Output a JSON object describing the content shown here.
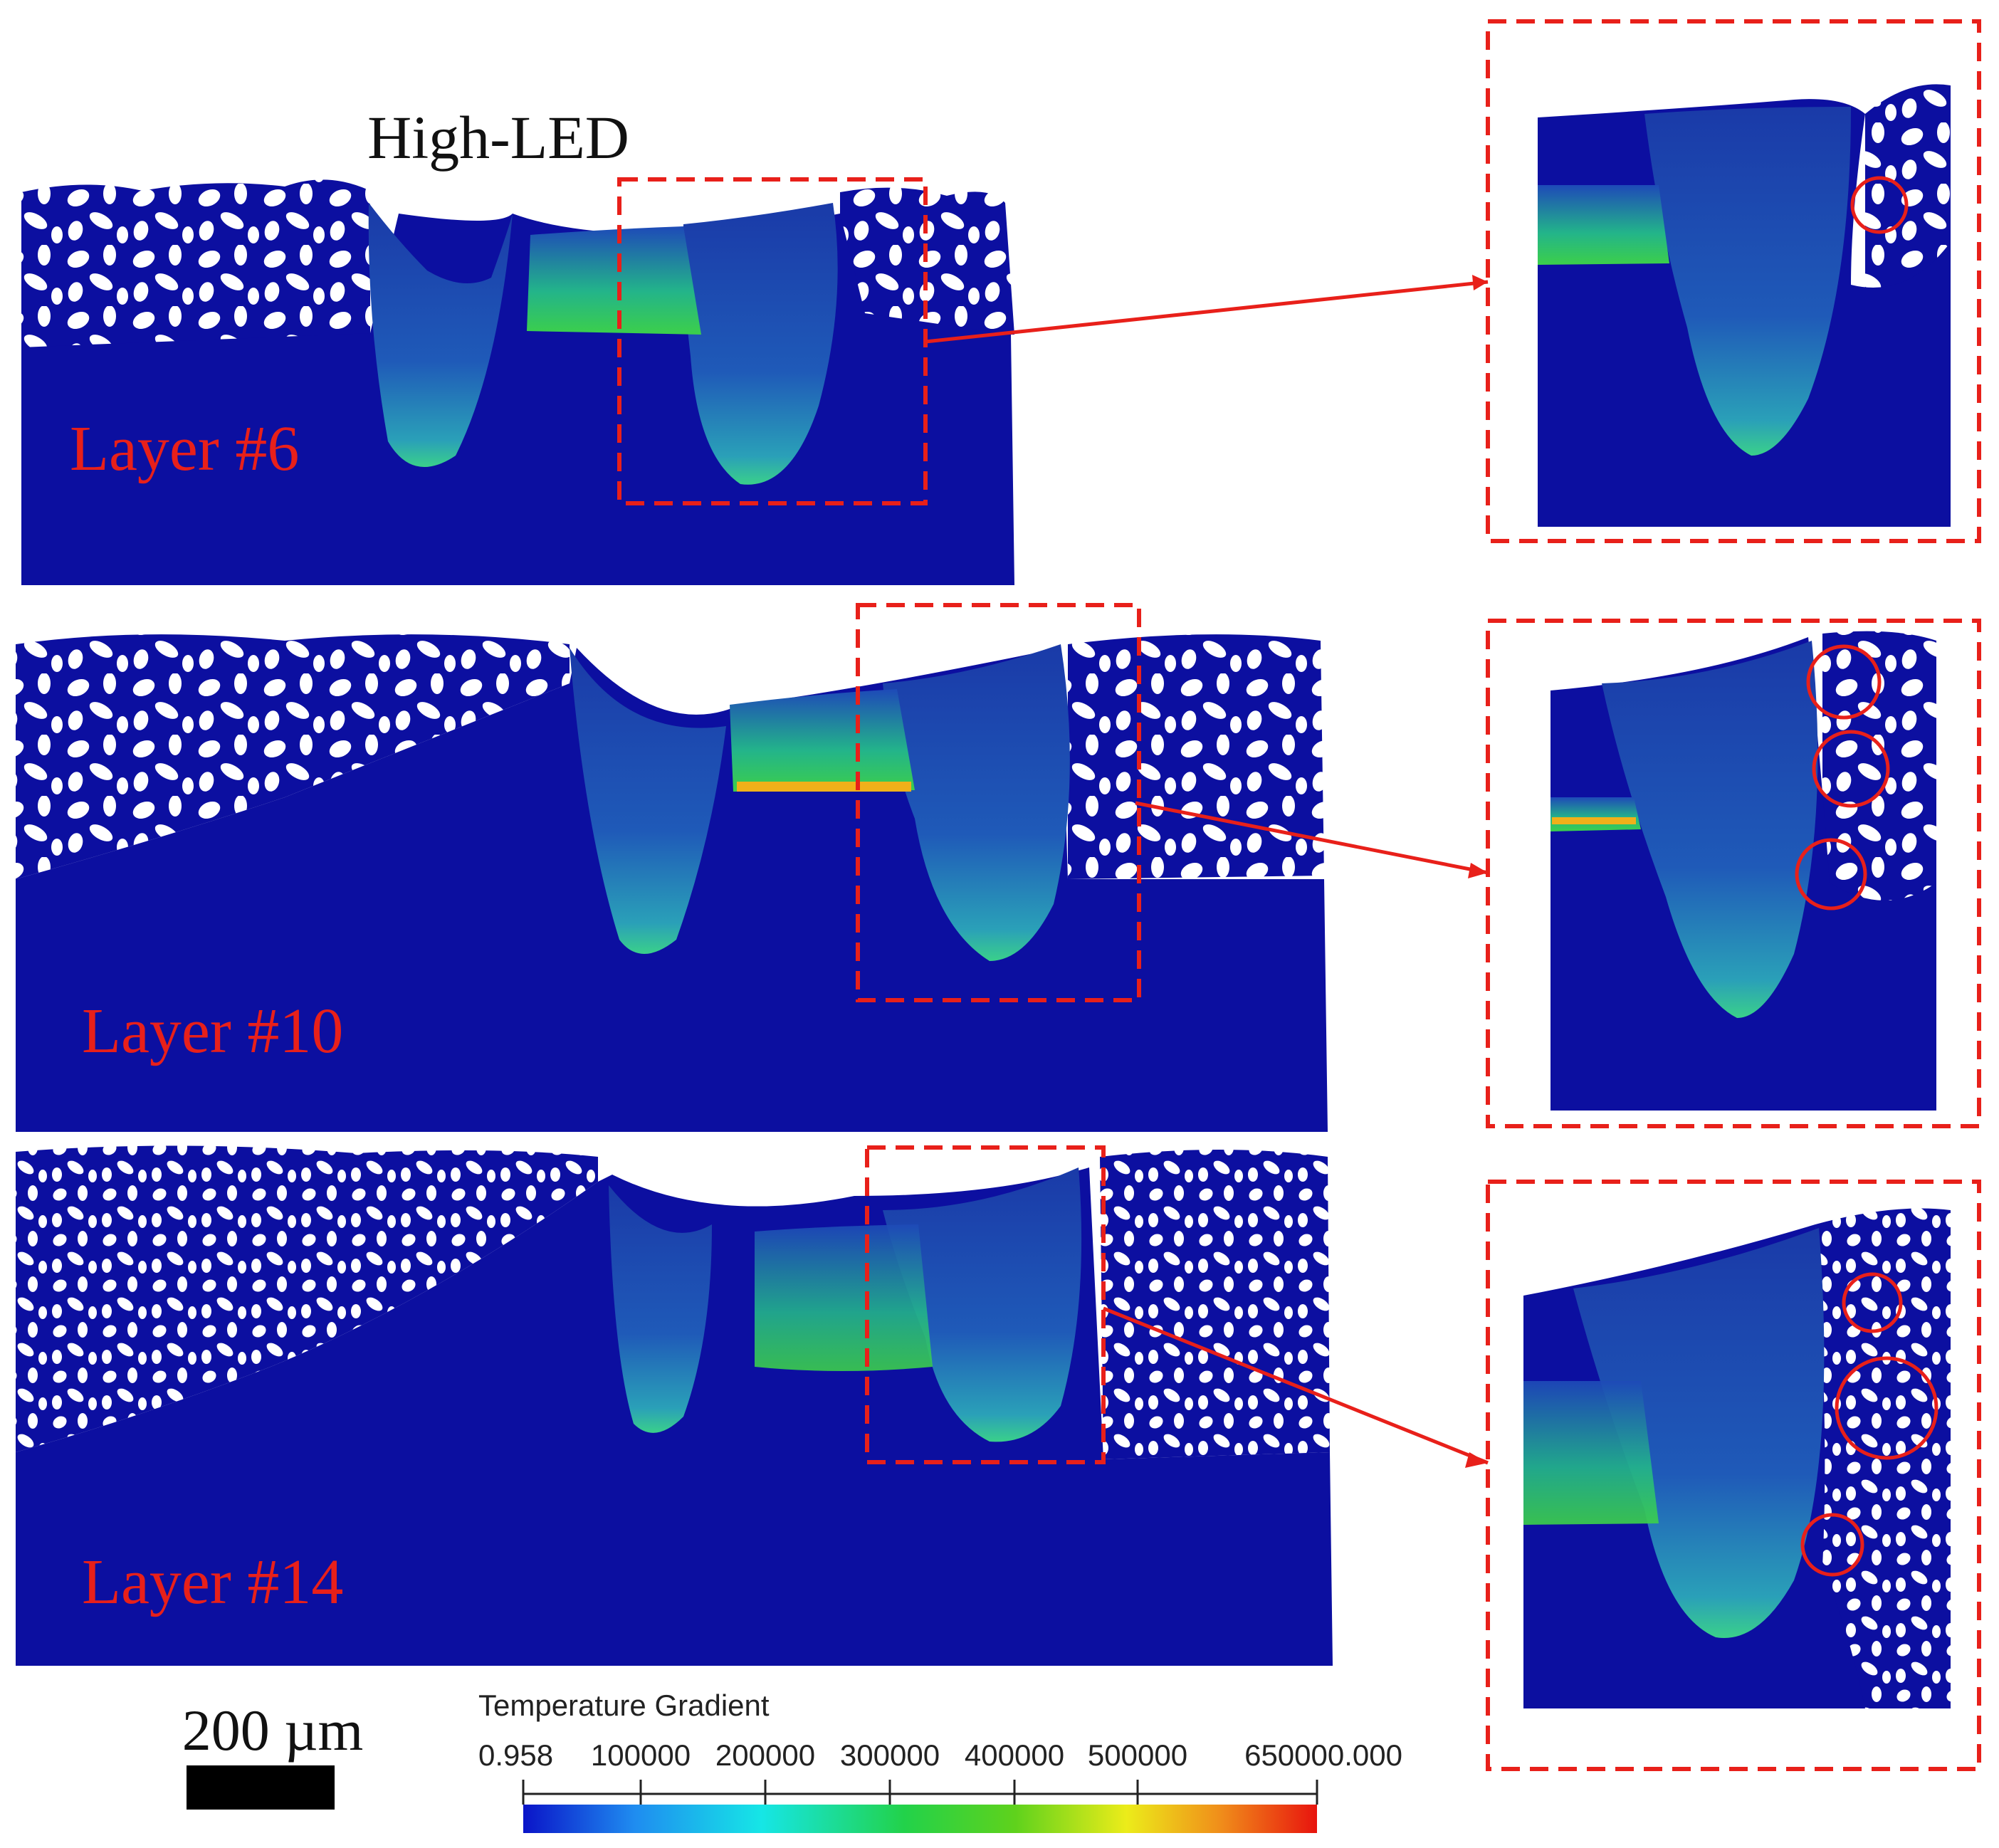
{
  "figure": {
    "title": "High-LED",
    "panels": [
      {
        "label": "Layer #6"
      },
      {
        "label": "Layer #10"
      },
      {
        "label": "Layer #14"
      }
    ]
  },
  "scale_bar": {
    "label": "200 µm"
  },
  "colorbar": {
    "title": "Temperature Gradient",
    "min_label": "0.958",
    "ticks": [
      "100000",
      "200000",
      "300000",
      "400000",
      "500000"
    ],
    "max_label": "650000.000",
    "colormap": [
      "#0a14c8",
      "#1f8cf0",
      "#16e6e6",
      "#22d24a",
      "#5fd21c",
      "#ecec1a",
      "#f08c1a",
      "#e8140e"
    ]
  },
  "colors": {
    "substrate": "#0c0fa0",
    "highlight": "#e8201a",
    "text": "#111111"
  }
}
